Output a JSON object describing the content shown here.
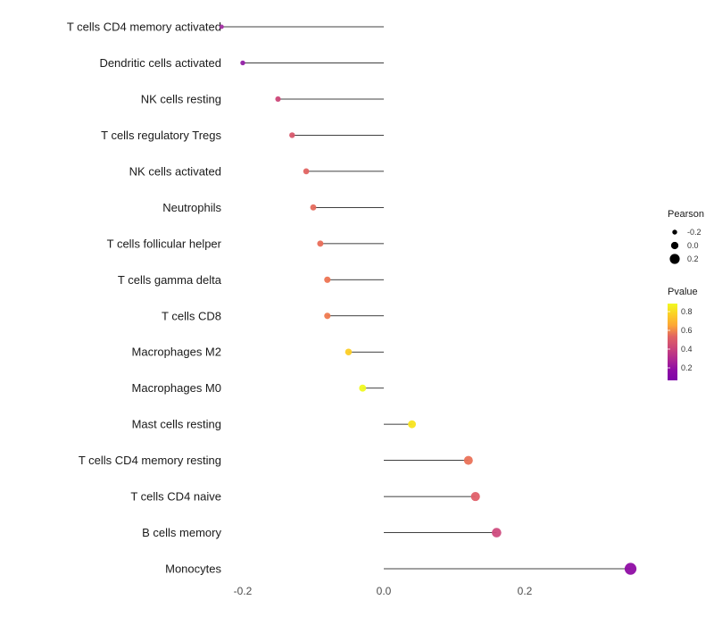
{
  "chart_data": {
    "type": "lollipop",
    "title": "",
    "xlabel": "",
    "ylabel": "",
    "xlim": [
      -0.28,
      0.42
    ],
    "grid": false,
    "x_ticks": [
      -0.2,
      0.0,
      0.2
    ],
    "x_tick_labels": [
      "-0.2",
      "0.0",
      "0.2"
    ],
    "categories": [
      "T cells CD4 memory activated",
      "Dendritic cells activated",
      "NK cells resting",
      "T cells regulatory Tregs",
      "NK cells activated",
      "Neutrophils",
      "T cells follicular helper",
      "T cells gamma delta",
      "T cells CD8",
      "Macrophages M2",
      "Macrophages M0",
      "Mast cells resting",
      "T cells CD4 memory resting",
      "T cells CD4 naive",
      "B cells memory",
      "Monocytes"
    ],
    "series": [
      {
        "name": "Pearson",
        "values": [
          -0.23,
          -0.2,
          -0.15,
          -0.13,
          -0.11,
          -0.1,
          -0.09,
          -0.08,
          -0.08,
          -0.05,
          -0.03,
          0.04,
          0.12,
          0.13,
          0.16,
          0.35
        ]
      },
      {
        "name": "Pvalue",
        "values": [
          0.25,
          0.22,
          0.45,
          0.5,
          0.55,
          0.58,
          0.6,
          0.62,
          0.63,
          0.8,
          0.88,
          0.83,
          0.58,
          0.53,
          0.42,
          0.08
        ]
      }
    ],
    "point_colors": [
      "#a531a5",
      "#9320a6",
      "#cc4778",
      "#d8576b",
      "#e16462",
      "#e56a5d",
      "#e96d59",
      "#ed7453",
      "#ef7a4f",
      "#fcce25",
      "#f0f921",
      "#f8e41f",
      "#ea7258",
      "#e0606a",
      "#cf4c7e",
      "#8f0da4"
    ],
    "stick_color": "#000000",
    "legend": {
      "position": "right",
      "size_title": "Pearson",
      "size_labels": [
        "-0.2",
        "0.0",
        "0.2"
      ],
      "size_values": [
        -0.2,
        0.0,
        0.2
      ],
      "size_swatch_color": "#000000",
      "color_title": "Pvalue",
      "color_ticks": [
        "0.8",
        "0.6",
        "0.4",
        "0.2"
      ],
      "gradient_top_to_bottom": [
        "#f0f921",
        "#fcce25",
        "#fca636",
        "#e16462",
        "#cc4778",
        "#b12a90",
        "#8f0da4",
        "#7e03a8"
      ]
    }
  }
}
